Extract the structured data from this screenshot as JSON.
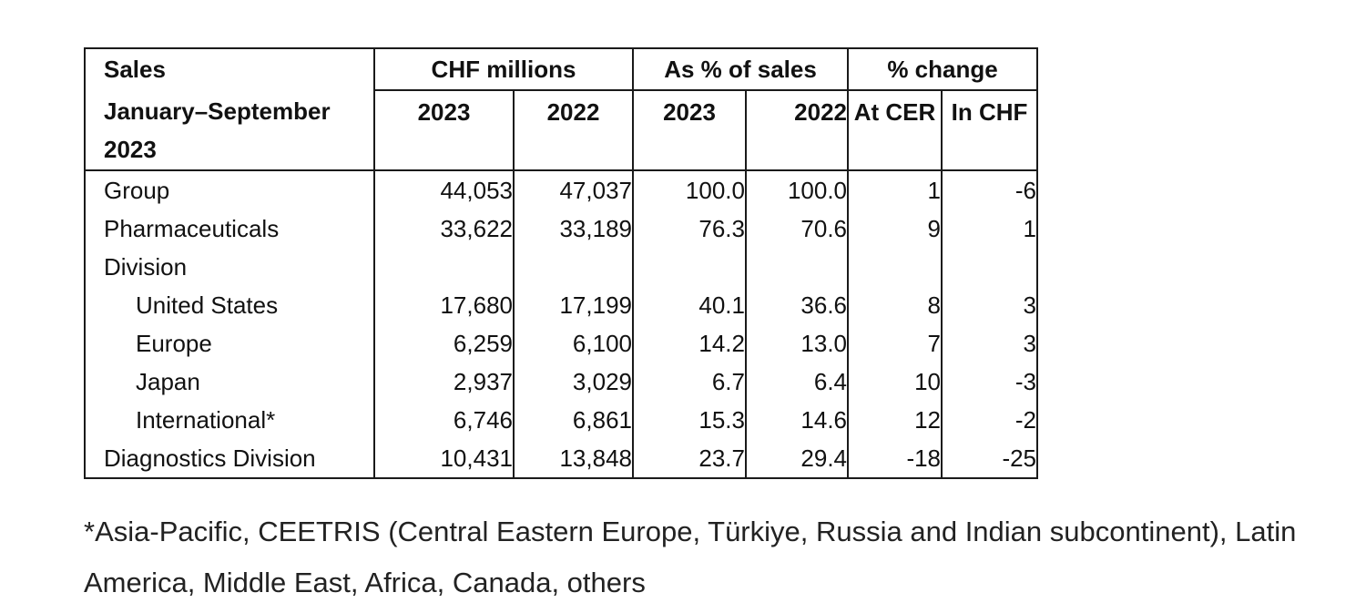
{
  "table": {
    "header_stub_line1": "Sales",
    "header_stub_line2": "January–September 2023",
    "group_chf": "CHF millions",
    "group_pct_sales": "As % of sales",
    "group_pct_change": "% change",
    "sub_headers": [
      "2023",
      "2022",
      "2023",
      "2022",
      "At CER",
      "In CHF"
    ],
    "rows": [
      {
        "label": "Group",
        "values": [
          "44,053",
          "47,037",
          "100.0",
          "100.0",
          "1",
          "-6"
        ]
      },
      {
        "label": "Pharmaceuticals",
        "values": [
          "33,622",
          "33,189",
          "76.3",
          "70.6",
          "9",
          "1"
        ]
      },
      {
        "label": "Division",
        "values": [
          "",
          "",
          "",
          "",
          "",
          ""
        ]
      },
      {
        "label": "United States",
        "values": [
          "17,680",
          "17,199",
          "40.1",
          "36.6",
          "8",
          "3"
        ]
      },
      {
        "label": "Europe",
        "values": [
          "6,259",
          "6,100",
          "14.2",
          "13.0",
          "7",
          "3"
        ]
      },
      {
        "label": "Japan",
        "values": [
          "2,937",
          "3,029",
          "6.7",
          "6.4",
          "10",
          "-3"
        ]
      },
      {
        "label": "International*",
        "values": [
          "6,746",
          "6,861",
          "15.3",
          "14.6",
          "12",
          "-2"
        ]
      },
      {
        "label": "Diagnostics Division",
        "values": [
          "10,431",
          "13,848",
          "23.7",
          "29.4",
          "-18",
          "-25"
        ]
      }
    ]
  },
  "footnote": "*Asia-Pacific, CEETRIS (Central Eastern Europe, Türkiye, Russia and Indian subcontinent), Latin America, Middle East, Africa, Canada, others"
}
